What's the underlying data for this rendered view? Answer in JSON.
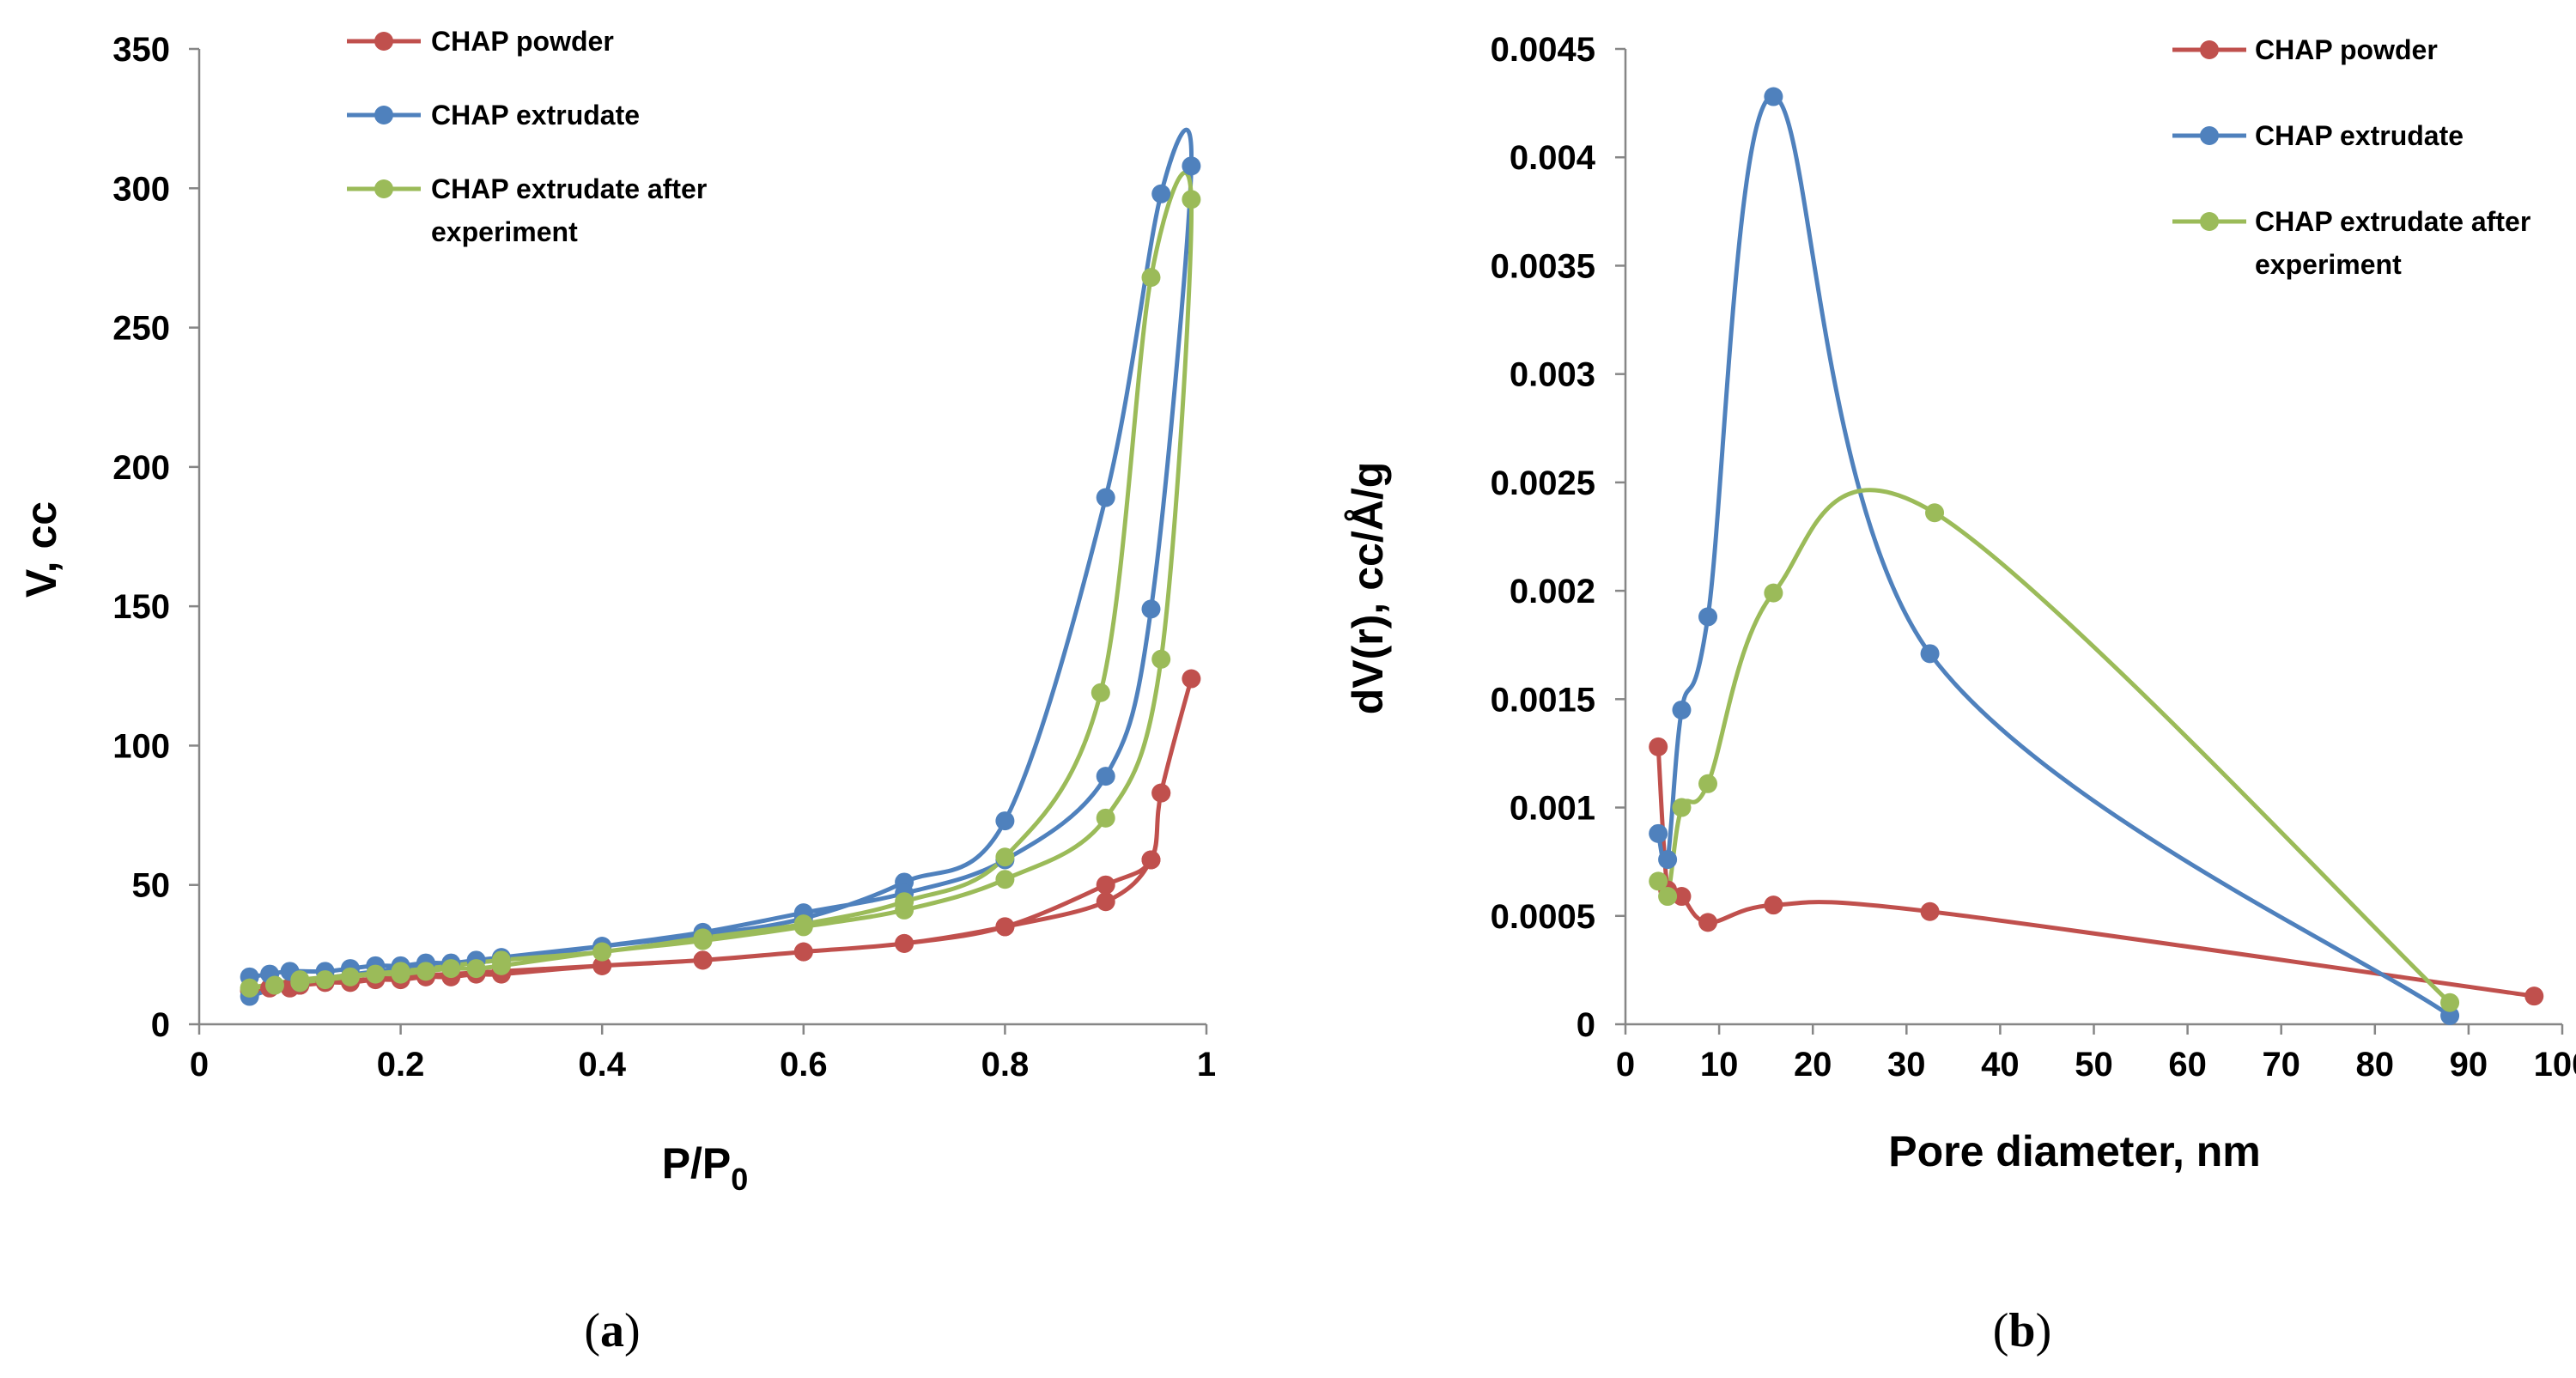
{
  "chart_data": [
    {
      "type": "scatter",
      "panel_label": "a",
      "title": "",
      "xlabel_main": "P/P",
      "xlabel_sub": "0",
      "ylabel": "V, cc",
      "xlim": [
        0,
        1
      ],
      "ylim": [
        0,
        350
      ],
      "xticks": [
        "0",
        "0.2",
        "0.4",
        "0.6",
        "0.8",
        "1"
      ],
      "yticks": [
        "0",
        "50",
        "100",
        "150",
        "200",
        "250",
        "300",
        "350"
      ],
      "grid": false,
      "legend_position": "top-center",
      "series": [
        {
          "name": "CHAP powder",
          "color": "#C0504D",
          "x": [
            0.05,
            0.07,
            0.09,
            0.1,
            0.125,
            0.15,
            0.175,
            0.2,
            0.225,
            0.25,
            0.275,
            0.3,
            0.4,
            0.5,
            0.6,
            0.7,
            0.8,
            0.9,
            0.945,
            0.955,
            0.985,
            0.955,
            0.945,
            0.9,
            0.8,
            0.7,
            0.6,
            0.5,
            0.4,
            0.3,
            0.2,
            0.1,
            0.05
          ],
          "y": [
            12,
            13,
            13,
            14,
            15,
            15,
            16,
            16,
            17,
            17,
            18,
            18,
            21,
            23,
            26,
            29,
            35,
            44,
            59,
            83,
            124,
            83,
            59,
            50,
            35,
            29,
            26,
            23,
            21,
            19,
            17,
            14,
            12
          ]
        },
        {
          "name": "CHAP extrudate",
          "color": "#4F81BD",
          "x": [
            0.05,
            0.07,
            0.09,
            0.125,
            0.15,
            0.175,
            0.2,
            0.225,
            0.25,
            0.275,
            0.3,
            0.4,
            0.5,
            0.6,
            0.7,
            0.8,
            0.9,
            0.955,
            0.985,
            0.945,
            0.9,
            0.8,
            0.7,
            0.6,
            0.5,
            0.4,
            0.3,
            0.2,
            0.1,
            0.05
          ],
          "y": [
            17,
            18,
            19,
            19,
            20,
            21,
            21,
            22,
            22,
            23,
            24,
            28,
            32,
            38,
            51,
            73,
            189,
            298,
            308,
            149,
            89,
            59,
            47,
            40,
            33,
            28,
            23,
            20,
            15,
            10
          ]
        },
        {
          "name": "CHAP extrudate after experiment",
          "color": "#9BBB59",
          "x": [
            0.05,
            0.075,
            0.1,
            0.125,
            0.15,
            0.175,
            0.2,
            0.225,
            0.25,
            0.275,
            0.3,
            0.4,
            0.5,
            0.6,
            0.7,
            0.8,
            0.9,
            0.955,
            0.985,
            0.945,
            0.895,
            0.8,
            0.7,
            0.6,
            0.5,
            0.4,
            0.3,
            0.2,
            0.1,
            0.05
          ],
          "y": [
            13,
            14,
            15,
            16,
            17,
            18,
            18,
            19,
            20,
            20,
            21,
            26,
            30,
            35,
            41,
            52,
            74,
            131,
            296,
            268,
            119,
            60,
            44,
            36,
            31,
            26,
            23,
            19,
            16,
            13
          ]
        }
      ]
    },
    {
      "type": "scatter",
      "panel_label": "b",
      "title": "",
      "xlabel": "Pore diameter, nm",
      "ylabel": "dV(r), cc/Å/g",
      "xlim": [
        0,
        100
      ],
      "ylim": [
        0,
        0.0045
      ],
      "xticks": [
        "0",
        "10",
        "20",
        "30",
        "40",
        "50",
        "60",
        "70",
        "80",
        "90",
        "100"
      ],
      "yticks": [
        "0",
        "0.0005",
        "0.001",
        "0.0015",
        "0.002",
        "0.0025",
        "0.003",
        "0.0035",
        "0.004",
        "0.0045"
      ],
      "grid": false,
      "legend_position": "top-right",
      "series": [
        {
          "name": "CHAP powder",
          "color": "#C0504D",
          "x": [
            3.5,
            4.5,
            6.0,
            8.8,
            15.8,
            32.5,
            97.0
          ],
          "y": [
            0.00128,
            0.00062,
            0.00059,
            0.00047,
            0.00055,
            0.00052,
            0.00013
          ]
        },
        {
          "name": "CHAP extrudate",
          "color": "#4F81BD",
          "x": [
            3.5,
            4.5,
            6.0,
            8.8,
            15.8,
            32.5,
            88.0
          ],
          "y": [
            0.00088,
            0.00076,
            0.00145,
            0.00188,
            0.00428,
            0.00171,
            4e-05
          ]
        },
        {
          "name": "CHAP extrudate after experiment",
          "color": "#9BBB59",
          "x": [
            3.5,
            4.5,
            6.0,
            8.8,
            15.8,
            33.0,
            88.0
          ],
          "y": [
            0.00066,
            0.00059,
            0.001,
            0.00111,
            0.00199,
            0.00236,
            0.0001
          ]
        }
      ]
    }
  ]
}
